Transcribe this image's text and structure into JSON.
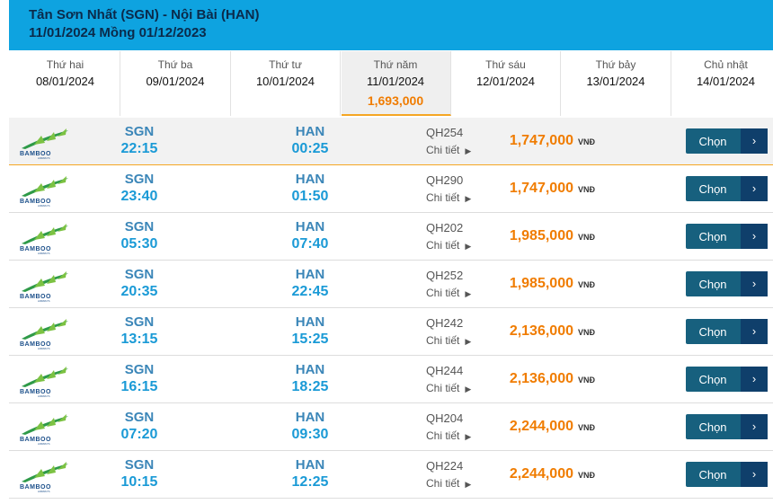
{
  "header": {
    "title": "Tân Sơn Nhất (SGN) - Nội Bài (HAN)",
    "subtitle": "11/01/2024 Mồng 01/12/2023"
  },
  "tabs": [
    {
      "day": "Thứ hai",
      "date": "08/01/2024"
    },
    {
      "day": "Thứ ba",
      "date": "09/01/2024"
    },
    {
      "day": "Thứ tư",
      "date": "10/01/2024"
    },
    {
      "day": "Thứ năm",
      "date": "11/01/2024"
    },
    {
      "day": "Thứ sáu",
      "date": "12/01/2024"
    },
    {
      "day": "Thứ bảy",
      "date": "13/01/2024"
    },
    {
      "day": "Chủ nhật",
      "date": "14/01/2024"
    }
  ],
  "selected_tab": {
    "index": 3,
    "price": "1,693,000"
  },
  "logo": {
    "name": "BAMBOO",
    "sub": "AIRWAYS"
  },
  "detail_label": "Chi tiết",
  "currency": "VNĐ",
  "button_label": "Chọn",
  "flights": [
    {
      "from": "SGN",
      "depart": "22:15",
      "to": "HAN",
      "arrive": "00:25",
      "code": "QH254",
      "price": "1,747,000"
    },
    {
      "from": "SGN",
      "depart": "23:40",
      "to": "HAN",
      "arrive": "01:50",
      "code": "QH290",
      "price": "1,747,000"
    },
    {
      "from": "SGN",
      "depart": "05:30",
      "to": "HAN",
      "arrive": "07:40",
      "code": "QH202",
      "price": "1,985,000"
    },
    {
      "from": "SGN",
      "depart": "20:35",
      "to": "HAN",
      "arrive": "22:45",
      "code": "QH252",
      "price": "1,985,000"
    },
    {
      "from": "SGN",
      "depart": "13:15",
      "to": "HAN",
      "arrive": "15:25",
      "code": "QH242",
      "price": "2,136,000"
    },
    {
      "from": "SGN",
      "depart": "16:15",
      "to": "HAN",
      "arrive": "18:25",
      "code": "QH244",
      "price": "2,136,000"
    },
    {
      "from": "SGN",
      "depart": "07:20",
      "to": "HAN",
      "arrive": "09:30",
      "code": "QH204",
      "price": "2,244,000"
    },
    {
      "from": "SGN",
      "depart": "10:15",
      "to": "HAN",
      "arrive": "12:25",
      "code": "QH224",
      "price": "2,244,000"
    }
  ]
}
